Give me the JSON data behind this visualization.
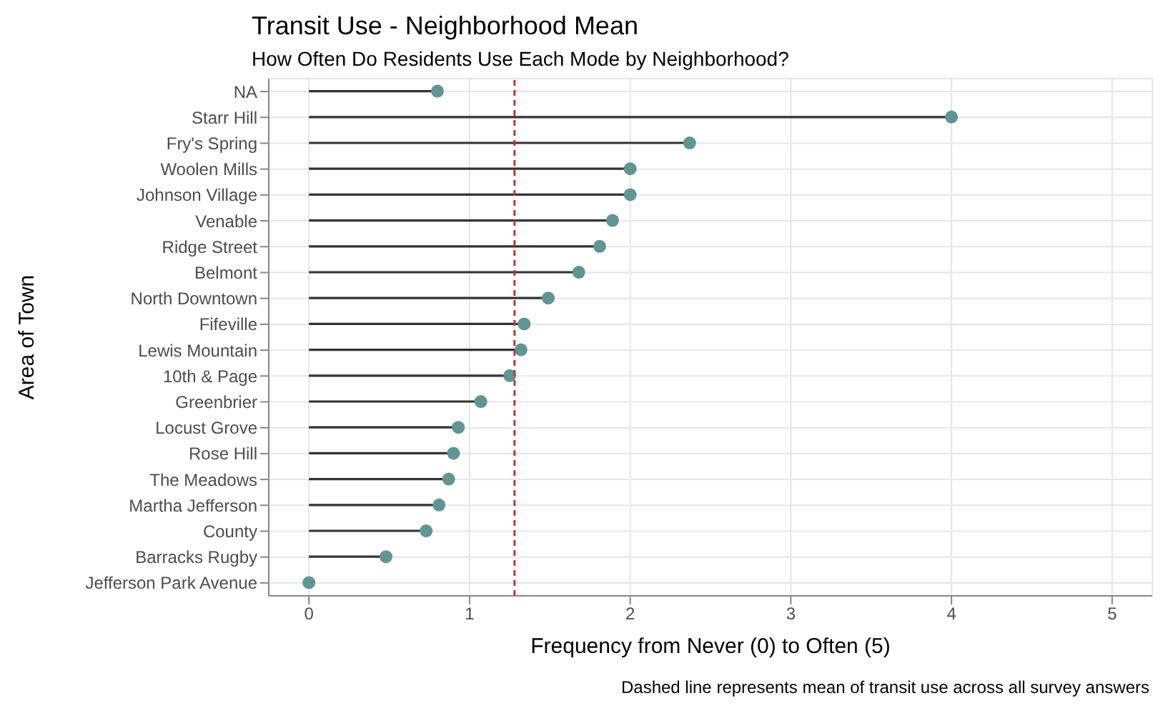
{
  "chart_data": {
    "type": "lollipop",
    "orientation": "horizontal",
    "title": "Transit Use - Neighborhood Mean",
    "subtitle": "How Often Do Residents Use Each Mode by Neighborhood?",
    "xlabel": "Frequency from Never (0) to Often (5)",
    "ylabel": "Area of Town",
    "categories": [
      "NA",
      "Starr Hill",
      "Fry's Spring",
      "Woolen Mills",
      "Johnson Village",
      "Venable",
      "Ridge Street",
      "Belmont",
      "North Downtown",
      "Fifeville",
      "Lewis Mountain",
      "10th & Page",
      "Greenbrier",
      "Locust Grove",
      "Rose Hill",
      "The Meadows",
      "Martha Jefferson",
      "County",
      "Barracks Rugby",
      "Jefferson Park Avenue"
    ],
    "values": [
      0.8,
      4.0,
      2.37,
      2.0,
      2.0,
      1.89,
      1.81,
      1.68,
      1.49,
      1.34,
      1.32,
      1.25,
      1.07,
      0.93,
      0.9,
      0.87,
      0.81,
      0.73,
      0.48,
      0
    ],
    "color": "#5f9595",
    "xlim": [
      -0.25,
      5.25
    ],
    "xticks": [
      0,
      1,
      2,
      3,
      4,
      5
    ],
    "grid": true,
    "marker": "circle",
    "ref_lines": [
      {
        "axis": "x",
        "value": 1.28,
        "color": "#c0392b",
        "line_style": "dashed"
      }
    ],
    "annotations": [
      "Dashed line represents mean of transit use across all survey answers"
    ]
  }
}
